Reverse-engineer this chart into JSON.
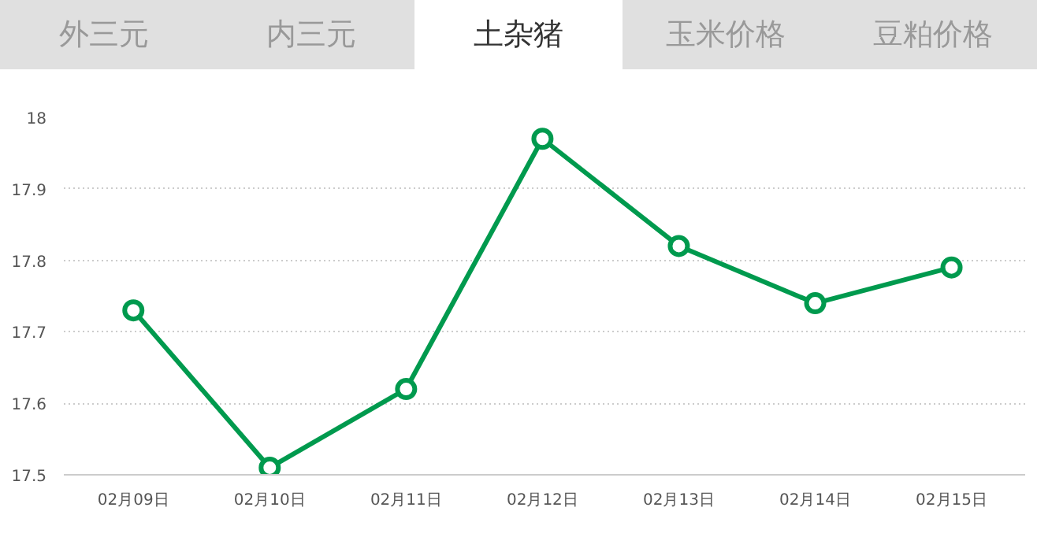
{
  "chart_data": {
    "type": "line",
    "title": "土杂猪",
    "annotations": [
      "外三元",
      "内三元",
      "玉米价格",
      "豆粕价格"
    ],
    "categories": [
      "02月09日",
      "02月10日",
      "02月11日",
      "02月12日",
      "02月13日",
      "02月14日",
      "02月15日"
    ],
    "series": [
      {
        "color": "#009a4e",
        "values": [
          17.73,
          17.51,
          17.62,
          17.97,
          17.82,
          17.74,
          17.79
        ]
      }
    ],
    "ylim": [
      17.5,
      18
    ],
    "yticks": [
      17.5,
      17.6,
      17.7,
      17.8,
      17.9,
      18
    ],
    "grid": "y",
    "marker": "circle",
    "line_style": "solid"
  }
}
